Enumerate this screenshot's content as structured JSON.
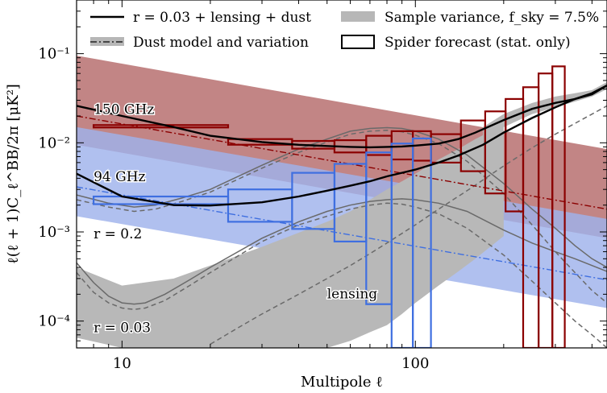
{
  "chart_data": {
    "type": "line",
    "xlabel": "Multipole ℓ",
    "ylabel": "ℓ(ℓ + 1)C_ℓ^BB/2π [μK²]",
    "x_scale": "log",
    "y_scale": "log",
    "xlim": [
      7,
      450
    ],
    "ylim": [
      5e-05,
      0.4
    ],
    "x_ticks": [
      {
        "value": 10,
        "label": "10"
      },
      {
        "value": 100,
        "label": "100"
      }
    ],
    "y_ticks": [
      {
        "value": 0.0001,
        "label": "10⁻⁴"
      },
      {
        "value": 0.001,
        "label": "10⁻³"
      },
      {
        "value": 0.01,
        "label": "10⁻²"
      },
      {
        "value": 0.1,
        "label": "10⁻¹"
      }
    ],
    "legend": {
      "placement": "top",
      "entries": [
        {
          "label": "r = 0.03 + lensing + dust",
          "style": "solid-black"
        },
        {
          "label": "Dust model and variation",
          "style": "dashdot-with-band"
        },
        {
          "label": "Sample variance, f_sky = 7.5%",
          "style": "gray-band"
        },
        {
          "label": "Spider forecast (stat. only)",
          "style": "open-box"
        }
      ]
    },
    "annotations": [
      {
        "text": "150 GHz",
        "x": 8,
        "y": 0.021
      },
      {
        "text": "94 GHz",
        "x": 8,
        "y": 0.0037
      },
      {
        "text": "r = 0.2",
        "x": 8,
        "y": 0.00085
      },
      {
        "text": "r = 0.03",
        "x": 8,
        "y": 7.5e-05
      },
      {
        "text": "lensing",
        "x": 50,
        "y": 0.00018
      }
    ],
    "colors": {
      "ghz150": "#8b0000",
      "ghz150_band": "#b56a6a",
      "ghz94": "#3f6fe0",
      "ghz94_band": "#9fb2ec",
      "sample_variance": "#b8b8b8",
      "theory": "#000000",
      "components": "#666666"
    },
    "series": [
      {
        "name": "r = 0.03 + lensing + dust (150 GHz)",
        "style": "solid-black",
        "x": [
          7,
          10,
          15,
          20,
          30,
          40,
          50,
          60,
          70,
          80,
          90,
          100,
          120,
          140,
          160,
          200,
          250,
          300,
          350,
          400,
          450
        ],
        "y": [
          0.026,
          0.02,
          0.015,
          0.012,
          0.0102,
          0.0095,
          0.0092,
          0.009,
          0.0089,
          0.009,
          0.0091,
          0.0093,
          0.0098,
          0.011,
          0.013,
          0.018,
          0.024,
          0.028,
          0.031,
          0.035,
          0.044
        ]
      },
      {
        "name": "r = 0.03 + lensing + dust (94 GHz)",
        "style": "solid-black",
        "x": [
          7,
          10,
          15,
          20,
          30,
          40,
          50,
          60,
          70,
          80,
          100,
          120,
          140,
          170,
          200,
          250,
          300,
          350,
          400,
          450
        ],
        "y": [
          0.0045,
          0.0025,
          0.002,
          0.00198,
          0.00215,
          0.0025,
          0.0029,
          0.0033,
          0.0037,
          0.0042,
          0.005,
          0.006,
          0.0072,
          0.0095,
          0.013,
          0.019,
          0.025,
          0.031,
          0.036,
          0.044
        ]
      },
      {
        "name": "Sample variance upper (150 GHz)",
        "style": "gray-band-edge",
        "x": [
          170,
          200,
          250,
          300,
          350,
          400,
          450
        ],
        "y": [
          0.015,
          0.021,
          0.028,
          0.033,
          0.036,
          0.039,
          0.048
        ]
      },
      {
        "name": "Sample variance lower (150 GHz)",
        "style": "gray-band-edge",
        "x": [
          170,
          200,
          250,
          300,
          350,
          400,
          450
        ],
        "y": [
          0.011,
          0.015,
          0.021,
          0.025,
          0.029,
          0.033,
          0.04
        ]
      },
      {
        "name": "Sample variance upper (94 GHz)",
        "style": "gray-band-edge",
        "x": [
          7,
          10,
          15,
          20,
          30,
          40,
          50,
          60,
          70,
          80,
          90,
          100,
          120,
          140,
          160,
          200
        ],
        "y": [
          0.0004,
          0.00025,
          0.0003,
          0.00042,
          0.00068,
          0.00098,
          0.0013,
          0.0017,
          0.0023,
          0.003,
          0.0037,
          0.0045,
          0.0065,
          0.0085,
          0.011,
          0.016
        ]
      },
      {
        "name": "Sample variance lower (94 GHz)",
        "style": "gray-band-edge",
        "x": [
          7,
          10,
          15,
          20,
          30,
          40,
          50,
          60,
          70,
          80,
          90,
          100,
          120,
          140,
          160,
          200
        ],
        "y": [
          6.5e-05,
          5e-05,
          5e-05,
          5e-05,
          5e-05,
          5e-05,
          5e-05,
          6e-05,
          7.5e-05,
          9e-05,
          0.00012,
          0.00016,
          0.00025,
          0.00036,
          0.0005,
          0.0009
        ]
      },
      {
        "name": "r = 0.2",
        "style": "solid-gray",
        "x": [
          7,
          9,
          11,
          13,
          16,
          20,
          30,
          40,
          50,
          60,
          70,
          80,
          90,
          100,
          120,
          150,
          200,
          250,
          300,
          350,
          400,
          450
        ],
        "y": [
          0.0026,
          0.0021,
          0.0019,
          0.002,
          0.0024,
          0.003,
          0.0056,
          0.0085,
          0.011,
          0.0135,
          0.0145,
          0.0148,
          0.0145,
          0.0135,
          0.011,
          0.0073,
          0.0035,
          0.0018,
          0.0011,
          0.0007,
          0.0005,
          0.0004
        ]
      },
      {
        "name": "r = 0.2 tensor only",
        "style": "dashed-gray",
        "x": [
          7,
          9,
          11,
          13,
          16,
          20,
          30,
          40,
          50,
          60,
          70,
          80,
          90,
          100,
          120,
          150,
          200,
          250,
          300,
          350,
          400,
          450
        ],
        "y": [
          0.0023,
          0.0019,
          0.0017,
          0.0018,
          0.0022,
          0.0028,
          0.0052,
          0.0078,
          0.0102,
          0.0125,
          0.0135,
          0.0138,
          0.0133,
          0.0122,
          0.0098,
          0.0062,
          0.0027,
          0.0012,
          0.0006,
          0.00035,
          0.00022,
          0.00016
        ]
      },
      {
        "name": "r = 0.03",
        "style": "solid-gray",
        "x": [
          7,
          8,
          9,
          10,
          11,
          12,
          14,
          17,
          20,
          30,
          40,
          50,
          60,
          70,
          80,
          90,
          100,
          120,
          150,
          200,
          250,
          300,
          350,
          400,
          450
        ],
        "y": [
          0.00045,
          0.00027,
          0.00019,
          0.00016,
          0.000155,
          0.00016,
          0.0002,
          0.00029,
          0.0004,
          0.00085,
          0.0013,
          0.0017,
          0.002,
          0.0022,
          0.0023,
          0.00235,
          0.0023,
          0.0021,
          0.0017,
          0.00105,
          0.00075,
          0.0006,
          0.0005,
          0.00042,
          0.00036
        ]
      },
      {
        "name": "r = 0.03 tensor only",
        "style": "dashed-gray",
        "x": [
          7,
          8,
          9,
          10,
          11,
          12,
          14,
          17,
          20,
          30,
          40,
          50,
          60,
          70,
          80,
          90,
          100,
          120,
          150,
          200,
          250,
          300,
          350,
          400,
          450
        ],
        "y": [
          0.00035,
          0.00021,
          0.00016,
          0.00014,
          0.000135,
          0.00014,
          0.00017,
          0.00025,
          0.00035,
          0.00078,
          0.0012,
          0.0015,
          0.0018,
          0.002,
          0.0021,
          0.00205,
          0.0019,
          0.0016,
          0.0011,
          0.00055,
          0.00028,
          0.00016,
          0.0001,
          7e-05,
          5e-05
        ]
      },
      {
        "name": "lensing",
        "style": "dashed-gray",
        "x": [
          20,
          25,
          30,
          40,
          50,
          60,
          70,
          80,
          100,
          120,
          150,
          200,
          250,
          300,
          350,
          400,
          450
        ],
        "y": [
          5.5e-05,
          8.5e-05,
          0.00012,
          0.0002,
          0.0003,
          0.00042,
          0.00057,
          0.00075,
          0.0012,
          0.0018,
          0.0029,
          0.0055,
          0.0088,
          0.0125,
          0.0165,
          0.021,
          0.026
        ]
      },
      {
        "name": "Dust model 150 GHz",
        "style": "dashdot-red",
        "x": [
          7,
          450
        ],
        "y": [
          0.02,
          0.0018
        ]
      },
      {
        "name": "Dust model 94 GHz",
        "style": "dashdot-blue",
        "x": [
          7,
          450
        ],
        "y": [
          0.0032,
          0.00029
        ]
      }
    ],
    "bands": [
      {
        "name": "Dust variation 150 GHz",
        "x": [
          7,
          450
        ],
        "upper": [
          0.095,
          0.0085
        ],
        "lower": [
          0.0095,
          0.00085
        ]
      },
      {
        "name": "Dust variation 94 GHz",
        "x": [
          7,
          450
        ],
        "upper": [
          0.015,
          0.0014
        ],
        "lower": [
          0.0015,
          0.00014
        ]
      }
    ],
    "forecast_boxes": [
      {
        "band": "150 GHz",
        "x_min": 8,
        "x_max": 23,
        "y_min": 0.0158,
        "y_max": 0.0158
      },
      {
        "band": "150 GHz",
        "x_min": 23,
        "x_max": 38,
        "y_min": 0.0095,
        "y_max": 0.011
      },
      {
        "band": "150 GHz",
        "x_min": 38,
        "x_max": 53,
        "y_min": 0.0086,
        "y_max": 0.0105
      },
      {
        "band": "150 GHz",
        "x_min": 53,
        "x_max": 68,
        "y_min": 0.0078,
        "y_max": 0.0107
      },
      {
        "band": "150 GHz",
        "x_min": 68,
        "x_max": 83,
        "y_min": 0.0073,
        "y_max": 0.012
      },
      {
        "band": "150 GHz",
        "x_min": 83,
        "x_max": 98,
        "y_min": 0.0065,
        "y_max": 0.0135
      },
      {
        "band": "150 GHz",
        "x_min": 98,
        "x_max": 113,
        "y_min": 0.0063,
        "y_max": 0.0135
      },
      {
        "band": "150 GHz",
        "x_min": 113,
        "x_max": 143,
        "y_min": 0.006,
        "y_max": 0.0125
      },
      {
        "band": "150 GHz",
        "x_min": 143,
        "x_max": 173,
        "y_min": 0.0048,
        "y_max": 0.0178
      },
      {
        "band": "150 GHz",
        "x_min": 173,
        "x_max": 203,
        "y_min": 0.0027,
        "y_max": 0.0225
      },
      {
        "band": "150 GHz",
        "x_min": 203,
        "x_max": 233,
        "y_min": 0.0017,
        "y_max": 0.031
      },
      {
        "band": "150 GHz",
        "x_min": 233,
        "x_max": 263,
        "y_min": 5e-05,
        "y_max": 0.042
      },
      {
        "band": "150 GHz",
        "x_min": 263,
        "x_max": 293,
        "y_min": 5e-05,
        "y_max": 0.06
      },
      {
        "band": "150 GHz",
        "x_min": 293,
        "x_max": 323,
        "y_min": 5e-05,
        "y_max": 0.072
      },
      {
        "band": "94 GHz",
        "x_min": 8,
        "x_max": 23,
        "y_min": 0.00205,
        "y_max": 0.0025
      },
      {
        "band": "94 GHz",
        "x_min": 23,
        "x_max": 38,
        "y_min": 0.0013,
        "y_max": 0.003
      },
      {
        "band": "94 GHz",
        "x_min": 38,
        "x_max": 53,
        "y_min": 0.00108,
        "y_max": 0.0046
      },
      {
        "band": "94 GHz",
        "x_min": 53,
        "x_max": 68,
        "y_min": 0.00078,
        "y_max": 0.0058
      },
      {
        "band": "94 GHz",
        "x_min": 68,
        "x_max": 83,
        "y_min": 0.000155,
        "y_max": 0.0078
      },
      {
        "band": "94 GHz",
        "x_min": 83,
        "x_max": 98,
        "y_min": 5e-05,
        "y_max": 0.0098
      },
      {
        "band": "94 GHz",
        "x_min": 98,
        "x_max": 113,
        "y_min": 5e-05,
        "y_max": 0.0112
      }
    ]
  }
}
